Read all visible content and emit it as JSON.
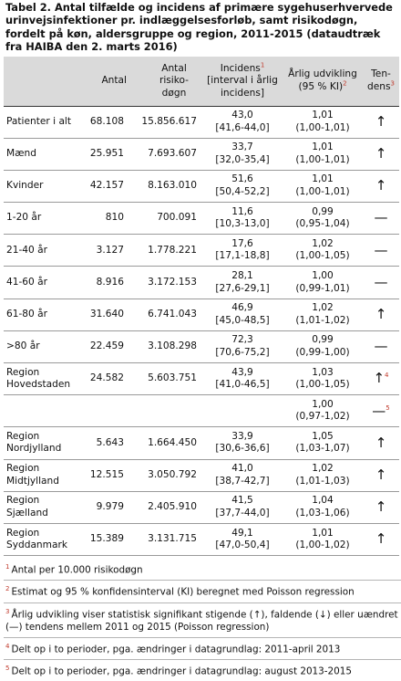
{
  "title": "Tabel 2. Antal tilfælde og incidens af primære sygehuserhvervede urinvejsinfektioner pr. indlæggelsesforløb, samt risikodøgn, fordelt på køn, aldersgruppe og region, 2011-2015 (dataudtræk fra HAIBA den 2. marts 2016)",
  "headers": {
    "group": "",
    "antal": "Antal",
    "risiko": "Antal risiko-døgn",
    "incidens": "Incidens",
    "incidens_sup": "1",
    "incidens_sub": "[interval i årlig incidens]",
    "udvikling": "Årlig udvikling (95 % KI)",
    "udvikling_sup": "2",
    "tendens": "Ten-dens",
    "tendens_sup": "3"
  },
  "rows": [
    {
      "label": "Patienter i alt",
      "antal": "68.108",
      "risiko": "15.856.617",
      "inc": "43,0",
      "inc_int": "[41,6-44,0]",
      "udv": "1,01",
      "udv_ki": "(1,00-1,01)",
      "tend": "↑",
      "tend_sup": ""
    },
    {
      "label": "Mænd",
      "antal": "25.951",
      "risiko": "7.693.607",
      "inc": "33,7",
      "inc_int": "[32,0-35,4]",
      "udv": "1,01",
      "udv_ki": "(1,00-1,01)",
      "tend": "↑",
      "tend_sup": ""
    },
    {
      "label": "Kvinder",
      "antal": "42.157",
      "risiko": "8.163.010",
      "inc": "51,6",
      "inc_int": "[50,4-52,2]",
      "udv": "1,01",
      "udv_ki": "(1,00-1,01)",
      "tend": "↑",
      "tend_sup": ""
    },
    {
      "label": "1-20 år",
      "antal": "810",
      "risiko": "700.091",
      "inc": "11,6",
      "inc_int": "[10,3-13,0]",
      "udv": "0,99",
      "udv_ki": "(0,95-1,04)",
      "tend": "—",
      "tend_sup": ""
    },
    {
      "label": "21-40 år",
      "antal": "3.127",
      "risiko": "1.778.221",
      "inc": "17,6",
      "inc_int": "[17,1-18,8]",
      "udv": "1,02",
      "udv_ki": "(1,00-1,05)",
      "tend": "—",
      "tend_sup": ""
    },
    {
      "label": "41-60 år",
      "antal": "8.916",
      "risiko": "3.172.153",
      "inc": "28,1",
      "inc_int": "[27,6-29,1]",
      "udv": "1,00",
      "udv_ki": "(0,99-1,01)",
      "tend": "—",
      "tend_sup": ""
    },
    {
      "label": "61-80 år",
      "antal": "31.640",
      "risiko": "6.741.043",
      "inc": "46,9",
      "inc_int": "[45,0-48,5]",
      "udv": "1,02",
      "udv_ki": "(1,01-1,02)",
      "tend": "↑",
      "tend_sup": ""
    },
    {
      "label": ">80 år",
      "antal": "22.459",
      "risiko": "3.108.298",
      "inc": "72,3",
      "inc_int": "[70,6-75,2]",
      "udv": "0,99",
      "udv_ki": "(0,99-1,00)",
      "tend": "—",
      "tend_sup": ""
    },
    {
      "label": "Region Hovedstaden",
      "antal": "24.582",
      "risiko": "5.603.751",
      "inc": "43,9",
      "inc_int": "[41,0-46,5]",
      "udv": "1,03",
      "udv_ki": "(1,00-1,05)",
      "tend": "↑",
      "tend_sup": "4"
    },
    {
      "label": "",
      "antal": "",
      "risiko": "",
      "inc": "",
      "inc_int": "",
      "udv": "1,00",
      "udv_ki": "(0,97-1,02)",
      "tend": "—",
      "tend_sup": "5"
    },
    {
      "label": "Region Nordjylland",
      "antal": "5.643",
      "risiko": "1.664.450",
      "inc": "33,9",
      "inc_int": "[30,6-36,6]",
      "udv": "1,05",
      "udv_ki": "(1,03-1,07)",
      "tend": "↑",
      "tend_sup": ""
    },
    {
      "label": "Region Midtjylland",
      "antal": "12.515",
      "risiko": "3.050.792",
      "inc": "41,0",
      "inc_int": "[38,7-42,7]",
      "udv": "1,02",
      "udv_ki": "(1,01-1,03)",
      "tend": "↑",
      "tend_sup": ""
    },
    {
      "label": "Region Sjælland",
      "antal": "9.979",
      "risiko": "2.405.910",
      "inc": "41,5",
      "inc_int": "[37,7-44,0]",
      "udv": "1,04",
      "udv_ki": "(1,03-1,06)",
      "tend": "↑",
      "tend_sup": ""
    },
    {
      "label": "Region Syddanmark",
      "antal": "15.389",
      "risiko": "3.131.715",
      "inc": "49,1",
      "inc_int": "[47,0-50,4]",
      "udv": "1,01",
      "udv_ki": "(1,00-1,02)",
      "tend": "↑",
      "tend_sup": ""
    }
  ],
  "footnotes": [
    {
      "num": "1",
      "text": "Antal per 10.000 risikodøgn"
    },
    {
      "num": "2",
      "text": "Estimat og 95 % konfidensinterval (KI) beregnet med Poisson regression"
    },
    {
      "num": "3",
      "text": "Årlig udvikling viser statistisk signifikant stigende (↑), faldende (↓) eller uændret (—) tendens mellem 2011 og 2015 (Poisson regression)"
    },
    {
      "num": "4",
      "text": "Delt op i to perioder, pga. ændringer i datagrundlag: 2011-april 2013"
    },
    {
      "num": "5",
      "text": "Delt op i to perioder, pga. ændringer i datagrundlag: august 2013-2015"
    }
  ]
}
